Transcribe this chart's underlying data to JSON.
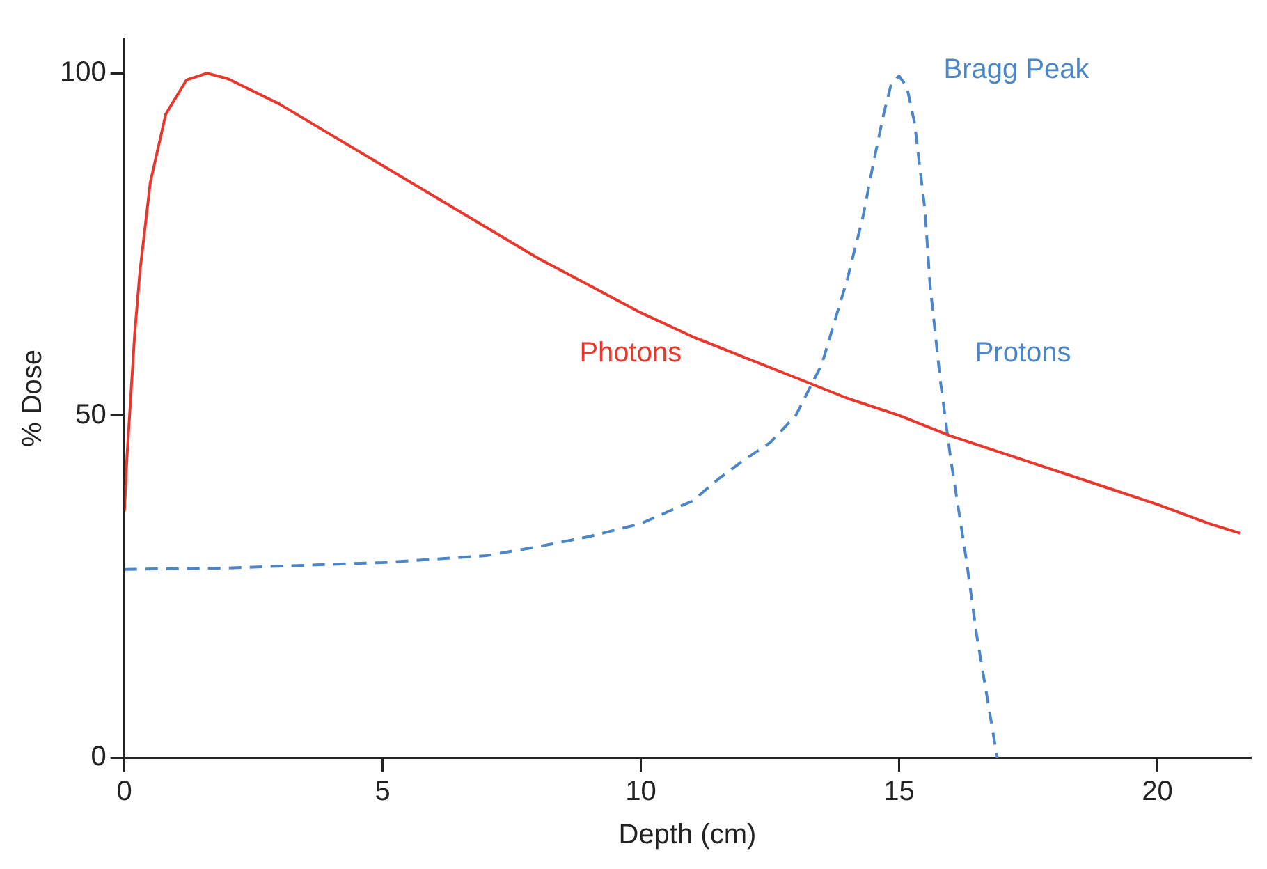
{
  "chart_data": {
    "type": "line",
    "xlabel": "Depth (cm)",
    "ylabel": "% Dose",
    "xlim": [
      0,
      21.8
    ],
    "ylim": [
      0,
      105
    ],
    "xticks": [
      0,
      5,
      10,
      15,
      20
    ],
    "yticks": [
      0,
      50,
      100
    ],
    "grid": false,
    "legend": false,
    "marker": "none",
    "series": [
      {
        "name": "Photons",
        "color": "#e8372c",
        "line_style": "solid",
        "x": [
          0,
          0.05,
          0.1,
          0.2,
          0.3,
          0.5,
          0.8,
          1.2,
          1.6,
          2,
          3,
          4,
          5,
          6,
          7,
          8,
          9,
          10,
          11,
          12,
          13,
          14,
          15,
          16,
          17,
          18,
          19,
          20,
          21,
          21.6
        ],
        "values": [
          36,
          44,
          50,
          62,
          71,
          84,
          94,
          99,
          100,
          99.2,
          95.5,
          91,
          86.5,
          82,
          77.5,
          73,
          69,
          65,
          61.5,
          58.5,
          55.5,
          52.5,
          50,
          47,
          44.5,
          42,
          39.5,
          37,
          34.2,
          32.8
        ]
      },
      {
        "name": "Protons",
        "color": "#4a86c8",
        "line_style": "dashed",
        "x": [
          0,
          2,
          5,
          7,
          8,
          9,
          10,
          11,
          11.5,
          12,
          12.5,
          13,
          13.5,
          14,
          14.3,
          14.5,
          14.7,
          14.85,
          15,
          15.15,
          15.3,
          15.5,
          15.6,
          15.8,
          16,
          16.3,
          16.5,
          16.7,
          16.9
        ],
        "values": [
          27.5,
          27.7,
          28.5,
          29.5,
          30.8,
          32.3,
          34.2,
          37.5,
          40.7,
          43.5,
          46,
          50,
          57.4,
          70,
          79,
          86.8,
          94,
          98.5,
          99.6,
          98,
          92.7,
          80,
          69,
          55,
          43.6,
          29,
          18,
          9,
          0
        ]
      }
    ],
    "annotations": [
      {
        "text": "Bragg Peak",
        "x": 15,
        "y": 99.6
      }
    ]
  }
}
